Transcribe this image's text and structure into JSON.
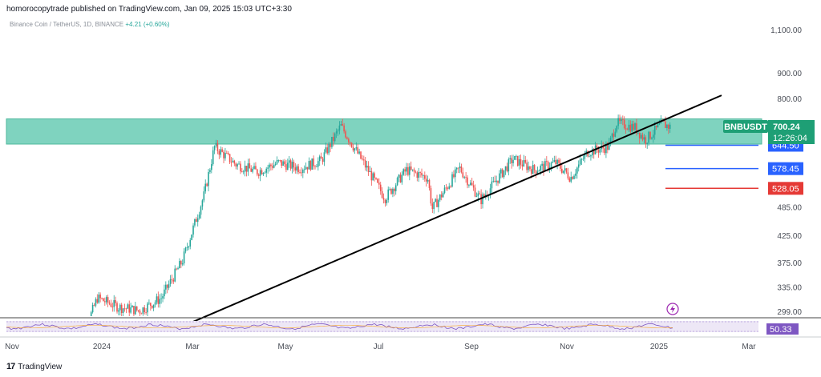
{
  "header": {
    "published": "homorocopytrade published on TradingView.com, Jan 09, 2025 15:03 UTC+3:30"
  },
  "symbol_line": {
    "text": "Binance Coin / TetherUS, 1D, BINANCE",
    "change": "+4.21 (+0.60%)"
  },
  "price_box": {
    "ticker": "BNBUSDT",
    "price": "700.24",
    "countdown": "12:26:04"
  },
  "levels": [
    {
      "label": "644.50",
      "value": 644.5,
      "color": "#2962ff"
    },
    {
      "label": "578.45",
      "value": 578.45,
      "color": "#2962ff"
    },
    {
      "label": "528.05",
      "value": 528.05,
      "color": "#e53935"
    }
  ],
  "rsi_value": "50.33",
  "colors": {
    "up": "#26a69a",
    "down": "#ef5350",
    "zone": "#7fd3bf",
    "zone_border": "#4fb89d",
    "trendline": "#000000",
    "price_label": "#1e9f75"
  },
  "footer": {
    "brand": "TradingView",
    "logo_icon": "tradingview-logo-icon"
  },
  "chart_data": {
    "type": "candlestick",
    "y_scale": "log",
    "y_ticks": [
      1100,
      900,
      800,
      700,
      485,
      425,
      375,
      335,
      299
    ],
    "y_tick_labels": [
      "1,100.00",
      "900.00",
      "800.00",
      "700.00",
      "485.00",
      "425.00",
      "375.00",
      "335.00",
      "299.00"
    ],
    "x_ticks": [
      "Nov",
      "2024",
      "Mar",
      "May",
      "Jul",
      "Sep",
      "Nov",
      "2025",
      "Mar"
    ],
    "resistance_zone": [
      648,
      728
    ],
    "trendline": {
      "start": [
        "2024-03-01",
        285
      ],
      "end": [
        "2024-12-31",
        715
      ]
    },
    "close_series": [
      {
        "date": "2023-12-15",
        "close": 245
      },
      {
        "date": "2023-12-29",
        "close": 318
      },
      {
        "date": "2024-01-12",
        "close": 305
      },
      {
        "date": "2024-01-26",
        "close": 300
      },
      {
        "date": "2024-02-09",
        "close": 318
      },
      {
        "date": "2024-02-23",
        "close": 378
      },
      {
        "date": "2024-03-08",
        "close": 510
      },
      {
        "date": "2024-03-15",
        "close": 640
      },
      {
        "date": "2024-03-29",
        "close": 590
      },
      {
        "date": "2024-04-12",
        "close": 570
      },
      {
        "date": "2024-04-26",
        "close": 595
      },
      {
        "date": "2024-05-10",
        "close": 580
      },
      {
        "date": "2024-05-24",
        "close": 600
      },
      {
        "date": "2024-06-06",
        "close": 705
      },
      {
        "date": "2024-06-20",
        "close": 600
      },
      {
        "date": "2024-07-05",
        "close": 505
      },
      {
        "date": "2024-07-19",
        "close": 575
      },
      {
        "date": "2024-08-02",
        "close": 555
      },
      {
        "date": "2024-08-05",
        "close": 480
      },
      {
        "date": "2024-08-23",
        "close": 580
      },
      {
        "date": "2024-09-06",
        "close": 500
      },
      {
        "date": "2024-09-27",
        "close": 605
      },
      {
        "date": "2024-10-11",
        "close": 575
      },
      {
        "date": "2024-10-25",
        "close": 595
      },
      {
        "date": "2024-11-04",
        "close": 555
      },
      {
        "date": "2024-11-15",
        "close": 625
      },
      {
        "date": "2024-11-29",
        "close": 640
      },
      {
        "date": "2024-12-04",
        "close": 715
      },
      {
        "date": "2024-12-16",
        "close": 700
      },
      {
        "date": "2024-12-23",
        "close": 660
      },
      {
        "date": "2025-01-03",
        "close": 712
      },
      {
        "date": "2025-01-09",
        "close": 700
      }
    ]
  }
}
